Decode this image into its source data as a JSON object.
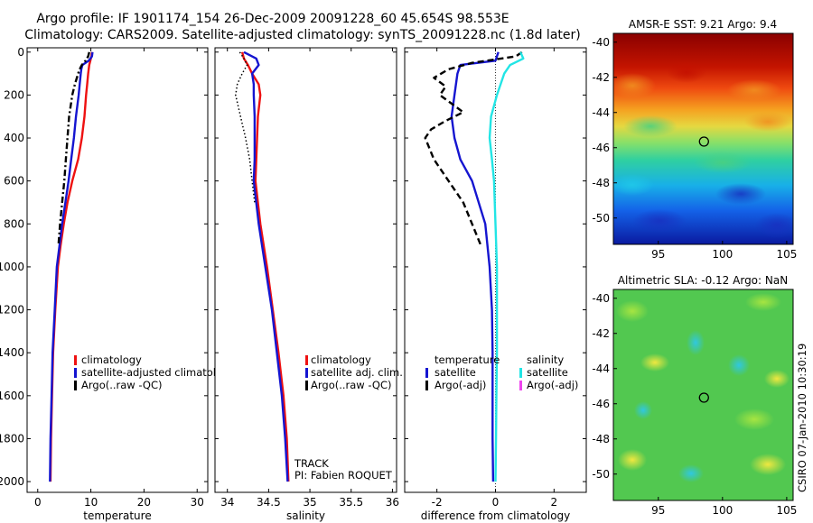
{
  "figure": {
    "title_line1": "Argo profile: IF 1901174_154 26-Dec-2009 20091228_60 45.654S 98.553E",
    "title_line2": "Climatology: CARS2009. Satellite-adjusted climatology: synTS_20091228.nc (1.8d later)",
    "side_label": "CSIRO 07-Jan-2010 10:30:19"
  },
  "colors": {
    "climatology": "#ee1111",
    "satellite": "#1515d0",
    "argo": "#000000",
    "salinity_satellite": "#22e5e5",
    "salinity_argo": "#ee44ee"
  },
  "chart_data": [
    {
      "id": "temperature",
      "type": "line",
      "xlabel": "temperature",
      "ylabel": "",
      "xlim": [
        -2,
        32
      ],
      "ylim": [
        2050,
        -20
      ],
      "xticks": [
        0,
        10,
        20,
        30
      ],
      "yticks": [
        0,
        200,
        400,
        600,
        800,
        1000,
        1200,
        1400,
        1600,
        1800,
        2000
      ],
      "series": [
        {
          "name": "climatology",
          "color": "#ee1111",
          "style": "solid",
          "depth": [
            0,
            20,
            40,
            60,
            80,
            100,
            150,
            200,
            300,
            400,
            500,
            600,
            700,
            800,
            900,
            1000,
            1200,
            1400,
            1600,
            1800,
            2000
          ],
          "values": [
            10.2,
            10.1,
            9.9,
            9.7,
            9.6,
            9.5,
            9.3,
            9.1,
            8.8,
            8.3,
            7.6,
            6.5,
            5.6,
            4.9,
            4.3,
            3.8,
            3.3,
            2.9,
            2.7,
            2.5,
            2.4
          ]
        },
        {
          "name": "satellite-adjusted climatology",
          "color": "#1515d0",
          "style": "solid",
          "depth": [
            0,
            20,
            40,
            60,
            80,
            100,
            150,
            200,
            300,
            400,
            500,
            600,
            700,
            800,
            900,
            1000,
            1200,
            1400,
            1600,
            1800,
            2000
          ],
          "values": [
            10.3,
            10.2,
            9.6,
            8.4,
            8.2,
            8.1,
            7.9,
            7.7,
            7.2,
            6.8,
            6.3,
            5.8,
            5.2,
            4.6,
            4.1,
            3.6,
            3.2,
            2.8,
            2.6,
            2.4,
            2.3
          ]
        },
        {
          "name": "Argo(..raw -QC)",
          "color": "#000000",
          "style": "dashdot",
          "depth": [
            0,
            20,
            40,
            60,
            80,
            100,
            150,
            200,
            300,
            400,
            500,
            600,
            700,
            800,
            900
          ],
          "values": [
            9.7,
            9.5,
            9.0,
            8.3,
            7.9,
            7.6,
            7.0,
            6.5,
            5.9,
            5.6,
            5.3,
            5.0,
            4.6,
            4.2,
            3.9
          ]
        }
      ],
      "legend": {
        "placement": "bottom-right",
        "entries": [
          "climatology",
          "satellite-adjusted climatology",
          "Argo(..raw -QC)"
        ]
      }
    },
    {
      "id": "salinity",
      "type": "line",
      "xlabel": "salinity",
      "xlim": [
        33.85,
        36.05
      ],
      "ylim": [
        2050,
        -20
      ],
      "xticks": [
        34,
        34.5,
        35,
        35.5,
        36
      ],
      "xtick_labels": [
        "34",
        "34.5",
        "35",
        "35.5",
        "36"
      ],
      "series": [
        {
          "name": "climatology",
          "color": "#ee1111",
          "style": "solid",
          "depth": [
            0,
            30,
            60,
            100,
            150,
            200,
            300,
            400,
            500,
            600,
            800,
            1000,
            1200,
            1400,
            1600,
            1800,
            2000
          ],
          "values": [
            34.18,
            34.2,
            34.25,
            34.3,
            34.38,
            34.4,
            34.37,
            34.36,
            34.35,
            34.34,
            34.4,
            34.48,
            34.55,
            34.62,
            34.68,
            34.72,
            34.74
          ]
        },
        {
          "name": "satellite adj. clim.",
          "color": "#1515d0",
          "style": "solid",
          "depth": [
            0,
            30,
            60,
            100,
            150,
            200,
            300,
            400,
            500,
            600,
            800,
            1000,
            1200,
            1400,
            1600,
            1800,
            2000
          ],
          "values": [
            34.2,
            34.35,
            34.38,
            34.3,
            34.32,
            34.32,
            34.33,
            34.33,
            34.33,
            34.32,
            34.38,
            34.46,
            34.54,
            34.6,
            34.66,
            34.7,
            34.73
          ]
        },
        {
          "name": "Argo(..raw -QC)",
          "color": "#000000",
          "style": "dotted",
          "depth": [
            0,
            30,
            60,
            100,
            150,
            200,
            300,
            400,
            500,
            600,
            700
          ],
          "values": [
            34.15,
            34.2,
            34.24,
            34.18,
            34.12,
            34.1,
            34.16,
            34.22,
            34.27,
            34.3,
            34.33
          ]
        }
      ],
      "legend": {
        "placement": "bottom-right",
        "entries": [
          "climatology",
          "satellite adj. clim.",
          "Argo(..raw -QC)"
        ]
      },
      "annotation": [
        "TRACK",
        "PI: Fabien ROQUET"
      ]
    },
    {
      "id": "difference",
      "type": "line",
      "xlabel": "difference from climatology",
      "xlim": [
        -3.1,
        3.1
      ],
      "ylim": [
        2050,
        -20
      ],
      "xticks": [
        -2,
        0,
        2
      ],
      "zero_line": true,
      "series": [
        {
          "name": "temperature satellite",
          "color": "#1515d0",
          "style": "solid",
          "depth": [
            0,
            40,
            60,
            100,
            200,
            300,
            400,
            500,
            600,
            800,
            1000,
            1200,
            1400,
            1600,
            1800,
            2000
          ],
          "values": [
            0.1,
            0.0,
            -1.2,
            -1.3,
            -1.4,
            -1.5,
            -1.4,
            -1.2,
            -0.8,
            -0.35,
            -0.2,
            -0.12,
            -0.1,
            -0.1,
            -0.1,
            -0.08
          ]
        },
        {
          "name": "temperature Argo(-adj)",
          "color": "#000000",
          "style": "dashed",
          "depth": [
            0,
            20,
            50,
            80,
            120,
            160,
            200,
            240,
            280,
            320,
            360,
            400,
            500,
            600,
            700,
            800,
            900
          ],
          "values": [
            0.9,
            0.7,
            -0.8,
            -1.6,
            -2.1,
            -1.7,
            -1.9,
            -1.5,
            -1.1,
            -1.7,
            -2.2,
            -2.4,
            -2.1,
            -1.6,
            -1.1,
            -0.8,
            -0.5
          ]
        },
        {
          "name": "salinity satellite",
          "color": "#22e5e5",
          "style": "solid",
          "depth": [
            0,
            30,
            60,
            100,
            200,
            300,
            400,
            500,
            600,
            800,
            1000,
            1200,
            1400,
            1600,
            1800,
            2000
          ],
          "values": [
            0.85,
            0.95,
            0.5,
            0.3,
            0.05,
            -0.15,
            -0.2,
            -0.12,
            -0.05,
            0.0,
            0.05,
            0.05,
            0.05,
            0.03,
            0.02,
            0.0
          ]
        },
        {
          "name": "salinity Argo(-adj)",
          "color": "#ee44ee",
          "style": "solid",
          "depth": [],
          "values": []
        }
      ],
      "legend": {
        "placement": "bottom-right",
        "temperature_title": "temperature",
        "salinity_title": "salinity",
        "temperature_entries": [
          "satellite",
          "Argo(-adj)"
        ],
        "salinity_entries": [
          "satellite",
          "Argo(-adj)"
        ]
      }
    },
    {
      "id": "sst_map",
      "type": "heatmap",
      "title": "AMSR-E SST: 9.21 Argo: 9.4",
      "xlim": [
        91.5,
        105.5
      ],
      "ylim": [
        -51.5,
        -39.5
      ],
      "xticks": [
        95,
        100,
        105
      ],
      "yticks": [
        -40,
        -42,
        -44,
        -46,
        -48,
        -50
      ],
      "marker": {
        "lon": 98.553,
        "lat": -45.654
      }
    },
    {
      "id": "sla_map",
      "type": "heatmap",
      "title": "Altimetric SLA: -0.12 Argo: NaN",
      "xlim": [
        91.5,
        105.5
      ],
      "ylim": [
        -51.5,
        -39.5
      ],
      "xticks": [
        95,
        100,
        105
      ],
      "yticks": [
        -40,
        -42,
        -44,
        -46,
        -48,
        -50
      ],
      "marker": {
        "lon": 98.553,
        "lat": -45.654
      }
    }
  ]
}
